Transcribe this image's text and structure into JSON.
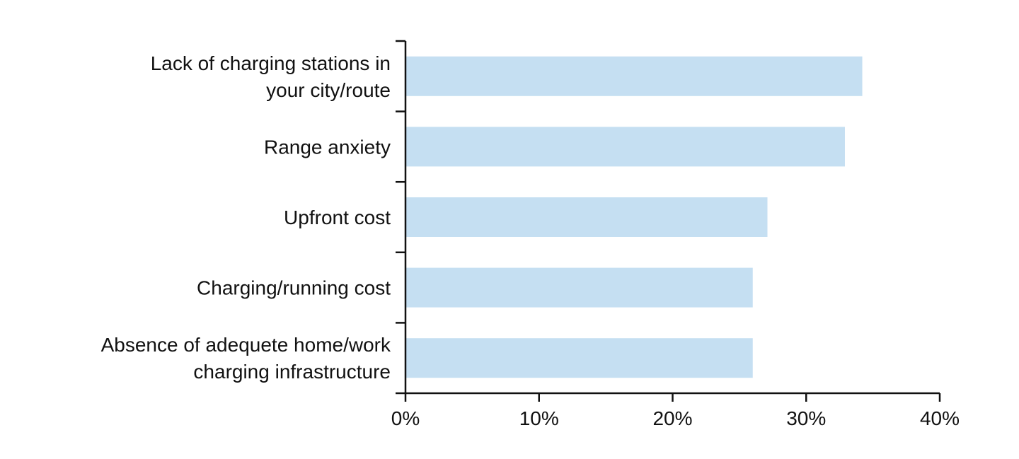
{
  "chart_data": {
    "type": "bar",
    "orientation": "horizontal",
    "title": "",
    "xlabel": "",
    "ylabel": "",
    "categories": [
      [
        "Lack of charging stations in",
        "your city/route"
      ],
      [
        "Range anxiety"
      ],
      [
        "Upfront cost"
      ],
      [
        "Charging/running cost"
      ],
      [
        "Absence of adequete home/work",
        "charging infrastructure"
      ]
    ],
    "values": [
      0.342,
      0.329,
      0.271,
      0.26,
      0.26
    ],
    "xlim": [
      0,
      0.4
    ],
    "x_ticks": [
      0,
      0.1,
      0.2,
      0.3,
      0.4
    ],
    "x_tick_labels": [
      "0%",
      "10%",
      "20%",
      "30%",
      "40%"
    ],
    "bar_color": "#c5dff2",
    "axis_color": "#111111",
    "grid": false,
    "legend": "none"
  }
}
